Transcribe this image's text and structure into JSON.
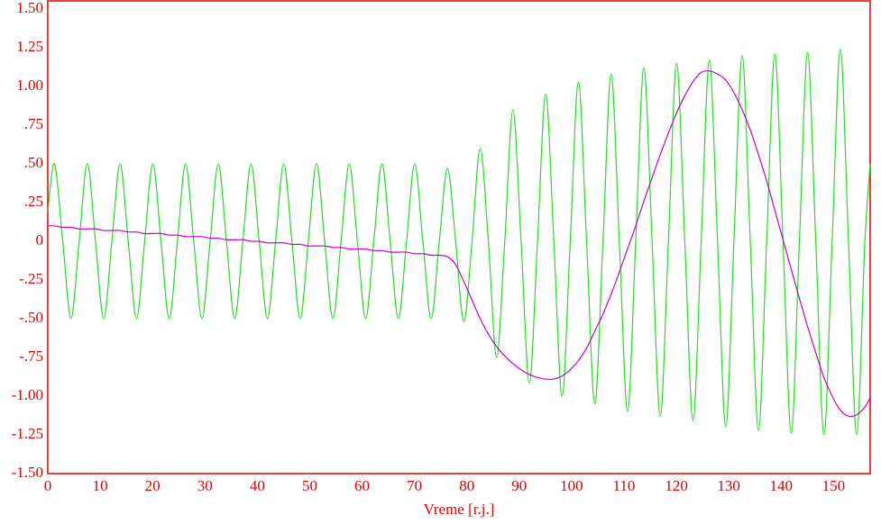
{
  "chart_data": {
    "type": "line",
    "x_label": "Vreme [r.j.]",
    "x": [
      0,
      1.3,
      2.86,
      4.43,
      5.99,
      7.55,
      9.11,
      10.68,
      12.24,
      13.8,
      15.36,
      16.93,
      18.49,
      20.05,
      21.61,
      23.18,
      24.74,
      26.3,
      27.86,
      29.43,
      30.99,
      32.55,
      34.11,
      35.68,
      37.24,
      38.8,
      40.36,
      41.93,
      43.49,
      45.05,
      46.61,
      48.18,
      49.74,
      51.3,
      52.86,
      54.43,
      55.99,
      57.55,
      59.11,
      60.68,
      62.24,
      63.8,
      65.36,
      66.93,
      68.49,
      70.05,
      71.61,
      73.18,
      74.74,
      76.3,
      77.86,
      79.43,
      80.99,
      82.55,
      84.11,
      85.68,
      87.24,
      88.8,
      90.36,
      91.93,
      93.49,
      95.05,
      96.61,
      98.18,
      99.74,
      101.3,
      102.86,
      104.43,
      105.99,
      107.55,
      109.11,
      110.68,
      112.24,
      113.8,
      115.36,
      116.93,
      118.49,
      120.05,
      121.61,
      123.18,
      124.74,
      126.3,
      127.86,
      129.43,
      130.99,
      132.55,
      134.11,
      135.68,
      137.24,
      138.8,
      140.36,
      141.93,
      143.49,
      145.05,
      146.61,
      148.18,
      149.74,
      151.3,
      152.86,
      154.43,
      155.99,
      157
    ],
    "series": [
      {
        "color": "#22dd22",
        "values": [
          0.19,
          0.5,
          0,
          -0.5,
          0,
          0.5,
          0,
          -0.5,
          0,
          0.5,
          0,
          -0.5,
          0,
          0.5,
          0,
          -0.5,
          0,
          0.5,
          0,
          -0.5,
          0,
          0.5,
          0,
          -0.5,
          0,
          0.5,
          0,
          -0.5,
          0,
          0.5,
          0,
          -0.5,
          0,
          0.5,
          0,
          -0.5,
          0,
          0.5,
          0,
          -0.5,
          0,
          0.5,
          0,
          -0.5,
          0,
          0.5,
          0,
          -0.5,
          0,
          0.47,
          0,
          -0.52,
          0,
          0.6,
          0,
          -0.75,
          0,
          0.85,
          0,
          -0.92,
          0,
          0.95,
          0,
          -1.0,
          0,
          1.03,
          0,
          -1.05,
          0,
          1.08,
          0,
          -1.1,
          0,
          1.12,
          0,
          -1.13,
          0,
          1.15,
          0,
          -1.16,
          0,
          1.17,
          0,
          -1.2,
          0,
          1.2,
          0,
          -1.22,
          0,
          1.21,
          0,
          -1.24,
          0,
          1.22,
          0,
          -1.25,
          0,
          1.24,
          0,
          -1.25,
          0,
          0.5
        ]
      },
      {
        "color": "#cc00cc",
        "values": [
          0.1,
          0.1,
          0.09,
          0.09,
          0.08,
          0.08,
          0.08,
          0.07,
          0.07,
          0.07,
          0.06,
          0.06,
          0.05,
          0.05,
          0.05,
          0.04,
          0.04,
          0.03,
          0.03,
          0.03,
          0.02,
          0.02,
          0.01,
          0.01,
          0.01,
          0.0,
          0.0,
          -0.01,
          -0.01,
          -0.01,
          -0.02,
          -0.02,
          -0.03,
          -0.03,
          -0.03,
          -0.04,
          -0.04,
          -0.05,
          -0.05,
          -0.05,
          -0.06,
          -0.06,
          -0.07,
          -0.07,
          -0.07,
          -0.08,
          -0.08,
          -0.09,
          -0.09,
          -0.1,
          -0.15,
          -0.26,
          -0.38,
          -0.5,
          -0.6,
          -0.68,
          -0.74,
          -0.79,
          -0.83,
          -0.86,
          -0.88,
          -0.89,
          -0.89,
          -0.87,
          -0.83,
          -0.77,
          -0.69,
          -0.58,
          -0.47,
          -0.34,
          -0.2,
          -0.05,
          0.1,
          0.26,
          0.41,
          0.56,
          0.7,
          0.83,
          0.94,
          1.03,
          1.09,
          1.1,
          1.08,
          1.04,
          0.96,
          0.85,
          0.72,
          0.56,
          0.39,
          0.2,
          0.01,
          -0.18,
          -0.37,
          -0.55,
          -0.72,
          -0.88,
          -1.0,
          -1.09,
          -1.13,
          -1.12,
          -1.07,
          -1.01
        ]
      }
    ],
    "xlim": [
      0,
      157
    ],
    "xticks": [
      0,
      10,
      20,
      30,
      40,
      50,
      60,
      70,
      80,
      90,
      100,
      110,
      120,
      130,
      140,
      150
    ],
    "ylim": [
      -1.5,
      1.5
    ],
    "yticks": [
      {
        "value": 1.5,
        "label": "1.50"
      },
      {
        "value": 1.25,
        "label": "1.25"
      },
      {
        "value": 1.0,
        "label": "1.00"
      },
      {
        "value": 0.75,
        "label": ".75"
      },
      {
        "value": 0.5,
        "label": ".50"
      },
      {
        "value": 0.25,
        "label": ".25"
      },
      0,
      {
        "value": -0.25,
        "label": "-.25"
      },
      {
        "value": -0.5,
        "label": "-.50"
      },
      {
        "value": -0.75,
        "label": "-.75"
      },
      {
        "value": -1.0,
        "label": "-1.00"
      },
      {
        "value": -1.25,
        "label": "-1.25"
      },
      {
        "value": -1.5,
        "label": "-1.50"
      }
    ],
    "grid": true
  }
}
